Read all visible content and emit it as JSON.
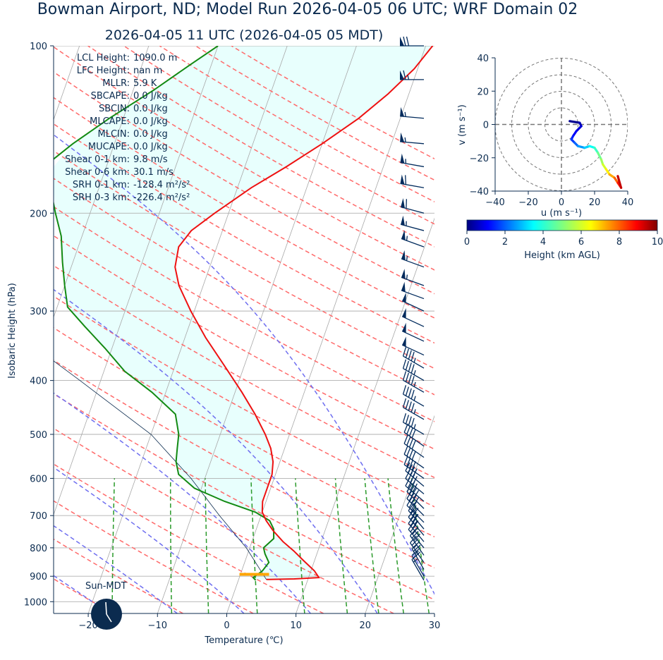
{
  "header": {
    "title": "Bowman Airport, ND; Model Run 2026-04-05 06 UTC; WRF Domain 02",
    "subtitle": "2026-04-05 11 UTC  (2026-04-05 05 MDT)"
  },
  "skewt": {
    "xlabel": "Temperature (℃)",
    "ylabel": "Isobaric Height (hPa)",
    "xlim": [
      -25,
      30
    ],
    "ylim": [
      1050,
      100
    ],
    "xticks": [
      -20,
      -10,
      0,
      10,
      20,
      30
    ],
    "xtick_labels": [
      "−20",
      "−10",
      "0",
      "10",
      "20",
      "30"
    ],
    "yticks": [
      100,
      200,
      300,
      400,
      500,
      600,
      700,
      800,
      900,
      1000
    ],
    "ytick_labels": [
      "100",
      "200",
      "300",
      "400",
      "500",
      "600",
      "700",
      "800",
      "900",
      "1000"
    ],
    "colors": {
      "temperature": "#ee1111",
      "dewpoint": "#138a13",
      "dry_adiabat": "#ff6a6a",
      "moist_adiabat": "#6f6ff0",
      "mixing_ratio": "#2a9a2a",
      "isotherm": "#a8a8a8",
      "cape_shade": "#e8fffd",
      "lcl_marker": "#ffa500",
      "barb": "#002a5c"
    },
    "stats": [
      {
        "label": "LCL Height:",
        "value": "1090.0 m"
      },
      {
        "label": "LFC Height:",
        "value": "nan m"
      },
      {
        "label": "MLLR:",
        "value": "5.9 K"
      },
      {
        "label": "SBCAPE:",
        "value": "0.0 J/kg"
      },
      {
        "label": "SBCIN:",
        "value": "0.0 J/kg"
      },
      {
        "label": "MLCAPE:",
        "value": "0.0 J/kg"
      },
      {
        "label": "MLCIN:",
        "value": "0.0 J/kg"
      },
      {
        "label": "MUCAPE:",
        "value": "0.0 J/kg"
      },
      {
        "label": "Shear 0-1 km:",
        "value": "9.8 m/s"
      },
      {
        "label": "Shear 0-6 km:",
        "value": "30.1 m/s"
      },
      {
        "label": "SRH 0-1 km:",
        "value": "-128.4 m²/s²"
      },
      {
        "label": "SRH 0-3 km:",
        "value": "-226.4 m²/s²"
      }
    ],
    "sun_label": "Sun-MDT"
  },
  "chart_data": [
    {
      "type": "line",
      "title": "",
      "xlabel": "Temperature (℃)",
      "ylabel": "Isobaric Height (hPa)",
      "x_range": [
        -25,
        30
      ],
      "y_range": [
        1050,
        100
      ],
      "y_scale": "log",
      "series": [
        {
          "name": "",
          "role": "temperature",
          "points": [
            [
              4.0,
              912
            ],
            [
              8.0,
              910
            ],
            [
              11.5,
              905
            ],
            [
              10.5,
              880
            ],
            [
              8.5,
              845
            ],
            [
              6.5,
              810
            ],
            [
              4.5,
              780
            ],
            [
              2.5,
              745
            ],
            [
              1.0,
              715
            ],
            [
              0.0,
              690
            ],
            [
              -0.5,
              660
            ],
            [
              -0.5,
              620
            ],
            [
              -0.5,
              590
            ],
            [
              -1.0,
              560
            ],
            [
              -2.0,
              530
            ],
            [
              -3.5,
              500
            ],
            [
              -6.0,
              460
            ],
            [
              -9.0,
              420
            ],
            [
              -13.0,
              375
            ],
            [
              -17.0,
              335
            ],
            [
              -20.5,
              300
            ],
            [
              -23.5,
              270
            ],
            [
              -25.0,
              250
            ],
            [
              -25.5,
              230
            ],
            [
              -24.5,
              215
            ],
            [
              -22.0,
              200
            ],
            [
              -18.0,
              180
            ],
            [
              -14.0,
              165
            ],
            [
              -10.0,
              150
            ],
            [
              -6.0,
              135
            ],
            [
              -3.0,
              122
            ],
            [
              -0.5,
              110
            ],
            [
              1.0,
              100
            ]
          ]
        },
        {
          "name": "",
          "role": "dewpoint",
          "points": [
            [
              2.5,
              915
            ],
            [
              2.0,
              905
            ],
            [
              3.0,
              880
            ],
            [
              3.5,
              850
            ],
            [
              2.5,
              820
            ],
            [
              2.0,
              800
            ],
            [
              3.0,
              770
            ],
            [
              2.5,
              740
            ],
            [
              1.5,
              715
            ],
            [
              -1.0,
              690
            ],
            [
              -6.0,
              660
            ],
            [
              -11.0,
              625
            ],
            [
              -14.0,
              590
            ],
            [
              -15.0,
              560
            ],
            [
              -15.5,
              530
            ],
            [
              -16.0,
              500
            ],
            [
              -17.5,
              460
            ],
            [
              -22.0,
              420
            ],
            [
              -27.0,
              385
            ],
            [
              -31.0,
              350
            ],
            [
              -35.0,
              320
            ],
            [
              -38.5,
              295
            ],
            [
              -40.0,
              270
            ],
            [
              -41.5,
              245
            ],
            [
              -43.0,
              220
            ],
            [
              -45.0,
              200
            ],
            [
              -47.0,
              180
            ],
            [
              -49.0,
              165
            ],
            [
              -46.0,
              150
            ],
            [
              -42.0,
              135
            ],
            [
              -37.0,
              120
            ],
            [
              -33.0,
              108
            ],
            [
              -30.0,
              100
            ]
          ]
        },
        {
          "name": "",
          "role": "parcel",
          "points": [
            [
              4.0,
              912
            ],
            [
              -0.5,
              800
            ],
            [
              -6.0,
              700
            ],
            [
              -12.0,
              600
            ],
            [
              -20.0,
              500
            ],
            [
              -33.0,
              400
            ],
            [
              -50.0,
              300
            ]
          ]
        }
      ],
      "lcl": {
        "t": 2.0,
        "p": 893
      },
      "wind_barbs": {
        "pressures": [
          100,
          115,
          135,
          150,
          165,
          180,
          200,
          215,
          230,
          250,
          270,
          285,
          300,
          320,
          340,
          360,
          380,
          400,
          420,
          445,
          470,
          500,
          525,
          550,
          575,
          600,
          620,
          640,
          660,
          680,
          700,
          720,
          740,
          760,
          780,
          800,
          825,
          850,
          875,
          900,
          915
        ],
        "speed_kt": [
          70,
          65,
          55,
          55,
          55,
          60,
          60,
          55,
          55,
          55,
          55,
          50,
          50,
          50,
          50,
          50,
          45,
          45,
          45,
          45,
          45,
          45,
          40,
          40,
          40,
          40,
          40,
          40,
          40,
          40,
          40,
          35,
          35,
          35,
          30,
          30,
          30,
          25,
          25,
          20,
          15
        ],
        "direction_deg": [
          270,
          270,
          275,
          275,
          280,
          280,
          285,
          285,
          290,
          290,
          290,
          290,
          295,
          295,
          295,
          295,
          300,
          300,
          300,
          300,
          300,
          300,
          305,
          305,
          305,
          305,
          310,
          310,
          310,
          315,
          315,
          315,
          320,
          320,
          320,
          320,
          325,
          325,
          330,
          330,
          330
        ]
      }
    },
    {
      "type": "line",
      "title": "",
      "xlabel": "u (m s⁻¹)",
      "ylabel": "v (m s⁻¹)",
      "x_range": [
        -40,
        40
      ],
      "y_range": [
        -40,
        40
      ],
      "xticks": [
        -40,
        -20,
        0,
        20,
        40
      ],
      "xtick_labels": [
        "−40",
        "−20",
        "0",
        "20",
        "40"
      ],
      "yticks": [
        40,
        20,
        0,
        -20,
        -40
      ],
      "ytick_labels": [
        "40",
        "20",
        "0",
        "−20",
        "−40"
      ],
      "rings": [
        10,
        20,
        30,
        40
      ],
      "series": [
        {
          "name": "",
          "role": "hodograph",
          "points": [
            [
              5,
              2
            ],
            [
              11,
              1
            ],
            [
              12,
              -1
            ],
            [
              9,
              -4
            ],
            [
              7,
              -7
            ],
            [
              6,
              -9
            ],
            [
              8,
              -11
            ],
            [
              10,
              -13
            ],
            [
              14,
              -14
            ],
            [
              17,
              -13
            ],
            [
              20,
              -14
            ],
            [
              22,
              -17
            ],
            [
              24,
              -21
            ],
            [
              25,
              -24
            ],
            [
              27,
              -27
            ],
            [
              29,
              -30
            ],
            [
              32,
              -32
            ],
            [
              34,
              -35
            ],
            [
              36,
              -38
            ],
            [
              34,
              -31
            ]
          ],
          "heights_km": [
            0.0,
            0.3,
            0.6,
            0.9,
            1.2,
            1.5,
            1.8,
            2.3,
            2.8,
            3.3,
            3.9,
            4.5,
            5.1,
            5.7,
            6.3,
            7.0,
            7.6,
            8.3,
            9.0,
            9.8
          ]
        }
      ],
      "colorbar": {
        "label": "Height (km AGL)",
        "range": [
          0,
          10
        ],
        "ticks": [
          0,
          2,
          4,
          6,
          8,
          10
        ],
        "tick_labels": [
          "0",
          "2",
          "4",
          "6",
          "8",
          "10"
        ],
        "colormap": "jet"
      },
      "storm_marker": "clock-icon"
    }
  ]
}
